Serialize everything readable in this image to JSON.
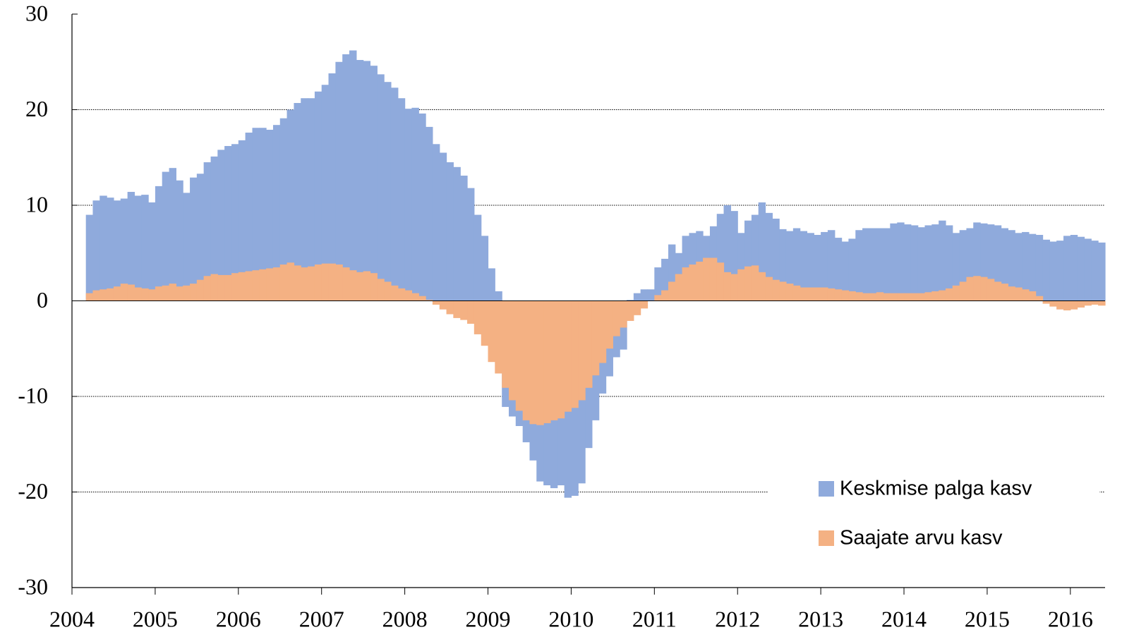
{
  "chart_data": {
    "type": "step-area",
    "x": [
      2004.167,
      2004.25,
      2004.333,
      2004.417,
      2004.5,
      2004.583,
      2004.667,
      2004.75,
      2004.833,
      2004.917,
      2005,
      2005.083,
      2005.167,
      2005.25,
      2005.333,
      2005.417,
      2005.5,
      2005.583,
      2005.667,
      2005.75,
      2005.833,
      2005.917,
      2006,
      2006.083,
      2006.167,
      2006.25,
      2006.333,
      2006.417,
      2006.5,
      2006.583,
      2006.667,
      2006.75,
      2006.833,
      2006.917,
      2007,
      2007.083,
      2007.167,
      2007.25,
      2007.333,
      2007.417,
      2007.5,
      2007.583,
      2007.667,
      2007.75,
      2007.833,
      2007.917,
      2008,
      2008.083,
      2008.167,
      2008.25,
      2008.333,
      2008.417,
      2008.5,
      2008.583,
      2008.667,
      2008.75,
      2008.833,
      2008.917,
      2009,
      2009.083,
      2009.167,
      2009.25,
      2009.333,
      2009.417,
      2009.5,
      2009.583,
      2009.667,
      2009.75,
      2009.833,
      2009.917,
      2010,
      2010.083,
      2010.167,
      2010.25,
      2010.333,
      2010.417,
      2010.5,
      2010.583,
      2010.667,
      2010.75,
      2010.833,
      2010.917,
      2011,
      2011.083,
      2011.167,
      2011.25,
      2011.333,
      2011.417,
      2011.5,
      2011.583,
      2011.667,
      2011.75,
      2011.833,
      2011.917,
      2012,
      2012.083,
      2012.167,
      2012.25,
      2012.333,
      2012.417,
      2012.5,
      2012.583,
      2012.667,
      2012.75,
      2012.833,
      2012.917,
      2013,
      2013.083,
      2013.167,
      2013.25,
      2013.333,
      2013.417,
      2013.5,
      2013.583,
      2013.667,
      2013.75,
      2013.833,
      2013.917,
      2014,
      2014.083,
      2014.167,
      2014.25,
      2014.333,
      2014.417,
      2014.5,
      2014.583,
      2014.667,
      2014.75,
      2014.833,
      2014.917,
      2015,
      2015.083,
      2015.167,
      2015.25,
      2015.333,
      2015.417,
      2015.5,
      2015.583,
      2015.667,
      2015.75,
      2015.833,
      2015.917,
      2016,
      2016.083,
      2016.167,
      2016.25,
      2016.333
    ],
    "series": [
      {
        "name": "Keskmise palga kasv",
        "color": "#8faadc",
        "values": [
          9,
          10.5,
          11,
          10.8,
          10.5,
          10.7,
          11.4,
          11,
          11.1,
          10.3,
          12,
          13.5,
          13.9,
          12.6,
          11.3,
          12.9,
          13.3,
          14.5,
          15.1,
          15.8,
          16.2,
          16.4,
          16.8,
          17.6,
          18.1,
          18.1,
          17.9,
          18.4,
          19.1,
          20,
          20.7,
          21.2,
          21.2,
          21.9,
          22.6,
          23.8,
          25,
          25.8,
          26.2,
          25.2,
          25.1,
          24.6,
          23.7,
          22.9,
          22.3,
          21.2,
          20.1,
          20.2,
          19.6,
          18.2,
          16.4,
          15.5,
          14.5,
          14,
          13.1,
          11.8,
          9,
          6.8,
          3.4,
          1,
          -11.1,
          -12.1,
          -13.1,
          -14.8,
          -16.7,
          -18.9,
          -19.3,
          -19.6,
          -19.3,
          -20.6,
          -20.4,
          -19.1,
          -15.4,
          -12.5,
          -9.7,
          -7.9,
          -5.9,
          -5.1,
          0.1,
          0.8,
          1.2,
          1.2,
          3.5,
          4.4,
          5.9,
          5,
          6.8,
          7.1,
          7.3,
          6.8,
          7.8,
          9.1,
          10,
          9.4,
          7.1,
          8.4,
          9,
          10.3,
          9.2,
          8.6,
          7.5,
          7.3,
          7.6,
          7.3,
          7.1,
          6.9,
          7.2,
          7.4,
          6.6,
          6.2,
          6.5,
          7.4,
          7.6,
          7.6,
          7.6,
          7.6,
          8.1,
          8.2,
          8,
          7.9,
          7.7,
          7.9,
          8,
          8.4,
          7.9,
          7.1,
          7.4,
          7.6,
          8.2,
          8.1,
          8,
          7.9,
          7.6,
          7.4,
          7.1,
          7.2,
          7,
          6.9,
          6.4,
          6.2,
          6.3,
          6.8,
          6.9,
          6.7,
          6.5,
          6.3,
          6.1
        ]
      },
      {
        "name": "Saajate arvu kasv",
        "color": "#f4b183",
        "values": [
          0.8,
          1.1,
          1.2,
          1.3,
          1.5,
          1.8,
          1.7,
          1.4,
          1.3,
          1.2,
          1.5,
          1.6,
          1.8,
          1.5,
          1.6,
          1.8,
          2.2,
          2.6,
          2.8,
          2.7,
          2.7,
          2.9,
          3,
          3.1,
          3.2,
          3.3,
          3.4,
          3.5,
          3.8,
          4,
          3.7,
          3.5,
          3.6,
          3.8,
          3.9,
          3.9,
          3.8,
          3.5,
          3.2,
          3,
          3.1,
          2.9,
          2.3,
          2,
          1.6,
          1.3,
          1.1,
          0.8,
          0.5,
          0.1,
          -0.4,
          -0.9,
          -1.4,
          -1.8,
          -2,
          -2.4,
          -3.5,
          -4.7,
          -6.4,
          -7.6,
          -9.1,
          -10.4,
          -11.5,
          -12.5,
          -12.9,
          -13,
          -12.8,
          -12.5,
          -12.3,
          -11.6,
          -11.2,
          -10.4,
          -9.1,
          -7.8,
          -6.5,
          -5,
          -3.7,
          -2.8,
          -2.1,
          -1.5,
          -0.8,
          0,
          0.6,
          1.1,
          2,
          2.8,
          3.5,
          3.8,
          4.1,
          4.5,
          4.5,
          4,
          3,
          2.8,
          3.3,
          3.6,
          3.7,
          3,
          2.5,
          2.2,
          2,
          1.8,
          1.6,
          1.4,
          1.4,
          1.4,
          1.4,
          1.3,
          1.2,
          1.1,
          1,
          0.9,
          0.8,
          0.8,
          0.9,
          0.8,
          0.8,
          0.8,
          0.8,
          0.8,
          0.8,
          0.9,
          1,
          1.1,
          1.3,
          1.6,
          2,
          2.5,
          2.6,
          2.5,
          2.3,
          2,
          1.8,
          1.5,
          1.4,
          1.2,
          1,
          0.5,
          -0.3,
          -0.6,
          -0.9,
          -1,
          -0.9,
          -0.7,
          -0.5,
          -0.4,
          -0.5
        ]
      }
    ],
    "xlim": [
      2004,
      2016.417
    ],
    "xticks": [
      2004,
      2005,
      2006,
      2007,
      2008,
      2009,
      2010,
      2011,
      2012,
      2013,
      2014,
      2015,
      2016
    ],
    "ylim": [
      -30,
      30
    ],
    "yticks": [
      -30,
      -20,
      -10,
      0,
      10,
      20,
      30
    ],
    "grid": true,
    "legend": "lower right"
  }
}
